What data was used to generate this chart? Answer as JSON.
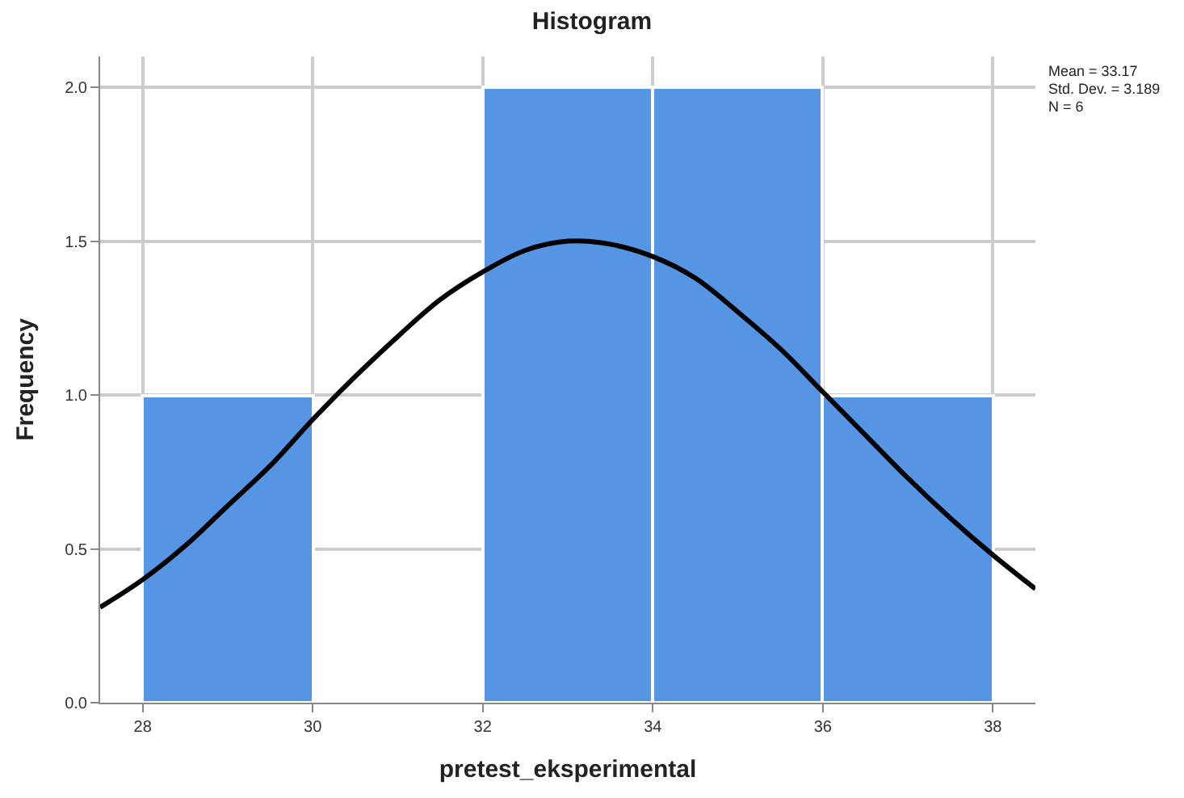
{
  "chart_data": {
    "type": "histogram",
    "title": "Histogram",
    "xlabel": "pretest_eksperimental",
    "ylabel": "Frequency",
    "series": [
      {
        "bins": [
          28,
          30,
          32,
          34,
          36,
          38
        ],
        "values": [
          1,
          0,
          2,
          2,
          1
        ],
        "color": "#5595e3"
      },
      {
        "type": "line",
        "color": "#000000",
        "x": [
          27.5,
          28,
          28.5,
          29,
          29.5,
          30,
          30.5,
          31,
          31.5,
          32,
          32.5,
          33,
          33.5,
          34,
          34.5,
          35,
          35.5,
          36,
          36.5,
          37,
          37.5,
          38,
          38.5
        ],
        "values": [
          0.31,
          0.4,
          0.51,
          0.64,
          0.77,
          0.92,
          1.06,
          1.19,
          1.31,
          1.4,
          1.47,
          1.5,
          1.49,
          1.45,
          1.38,
          1.27,
          1.15,
          1.01,
          0.87,
          0.73,
          0.6,
          0.48,
          0.37
        ]
      }
    ],
    "annotations": [
      "Mean = 33.17",
      "Std. Dev. = 3.189",
      "N = 6"
    ],
    "xlim": [
      27.5,
      38.5
    ],
    "xticks": [
      28,
      30,
      32,
      34,
      36,
      38
    ],
    "ylim": [
      0,
      2.1
    ],
    "yticks": [
      {
        "value": 0,
        "label": "0.0"
      },
      {
        "value": 0.5,
        "label": "0.5"
      },
      {
        "value": 1,
        "label": "1.0"
      },
      {
        "value": 1.5,
        "label": "1.5"
      },
      {
        "value": 2,
        "label": "2.0"
      }
    ],
    "grid": true
  }
}
